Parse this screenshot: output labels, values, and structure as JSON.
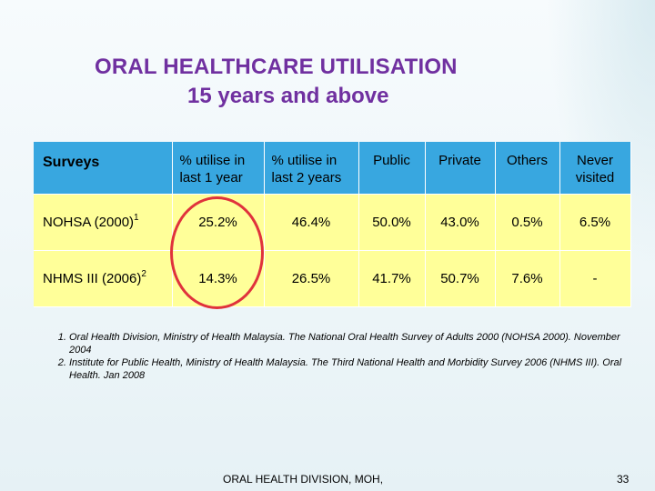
{
  "title": {
    "line1": "ORAL HEALTHCARE UTILISATION",
    "line2": "15 years and above"
  },
  "table": {
    "headers": [
      {
        "line1": "Surveys",
        "line2": ""
      },
      {
        "line1": "% utilise in",
        "line2": "last 1 year"
      },
      {
        "line1": "% utilise in",
        "line2": "last 2 years"
      },
      {
        "line1": "Public",
        "line2": ""
      },
      {
        "line1": "Private",
        "line2": ""
      },
      {
        "line1": "Others",
        "line2": ""
      },
      {
        "line1": "Never",
        "line2": "visited"
      }
    ],
    "rows": [
      {
        "survey": "NOHSA (2000)",
        "ref": "1",
        "values": [
          "25.2%",
          "46.4%",
          "50.0%",
          "43.0%",
          "0.5%",
          "6.5%"
        ]
      },
      {
        "survey": "NHMS III (2006)",
        "ref": "2",
        "values": [
          "14.3%",
          "26.5%",
          "41.7%",
          "50.7%",
          "7.6%",
          "-"
        ]
      }
    ]
  },
  "notes": [
    "Oral Health Division, Ministry of Health Malaysia. The National Oral Health Survey of Adults 2000 (NOHSA 2000). November 2004",
    "Institute for Public Health, Ministry of Health Malaysia. The Third National Health and Morbidity Survey 2006 (NHMS III). Oral Health. Jan 2008"
  ],
  "footer": {
    "text": "ORAL HEALTH DIVISION, MOH,",
    "page": "33"
  },
  "colors": {
    "title": "#7030a0",
    "header_bg": "#38a7e0",
    "row_bg": "#ffff99",
    "highlight": "#e0323c"
  }
}
